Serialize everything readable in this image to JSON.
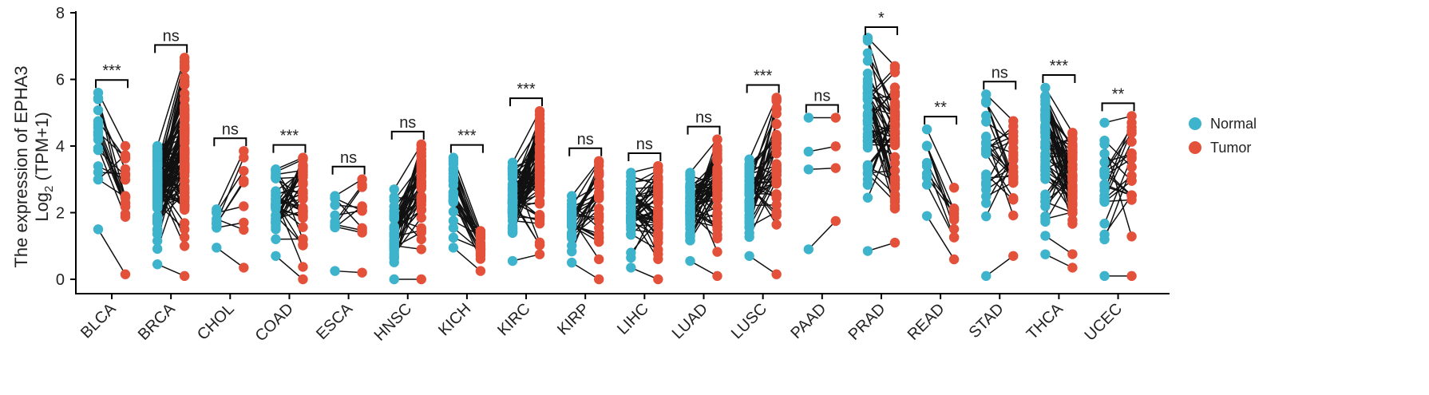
{
  "chart_data": {
    "type": "paired-scatter",
    "title": "",
    "ylabel_line1": "The expression of EPHA3",
    "ylabel_line2_main": "Log",
    "ylabel_line2_sub": "2",
    "ylabel_line2_rest": " (TPM+1)",
    "ylim": [
      0,
      8
    ],
    "yticks": [
      0,
      2,
      4,
      6,
      8
    ],
    "legend": {
      "position": "right",
      "entries": [
        {
          "name": "Normal",
          "color": "#3DB3CC"
        },
        {
          "name": "Tumor",
          "color": "#E4513B"
        }
      ]
    },
    "categories": [
      "BLCA",
      "BRCA",
      "CHOL",
      "COAD",
      "ESCA",
      "HNSC",
      "KICH",
      "KIRC",
      "KIRP",
      "LIHC",
      "LUAD",
      "LUSC",
      "PAAD",
      "PRAD",
      "READ",
      "STAD",
      "THCA",
      "UCEC"
    ],
    "significance": [
      "***",
      "ns",
      "ns",
      "***",
      "ns",
      "ns",
      "***",
      "***",
      "ns",
      "ns",
      "ns",
      "***",
      "ns",
      "*",
      "**",
      "ns",
      "***",
      "**"
    ],
    "groups": [
      {
        "cancer": "BLCA",
        "n_pairs": 19,
        "normal_range": [
          1.5,
          5.6
        ],
        "tumor_range": [
          0.15,
          4.0
        ]
      },
      {
        "cancer": "BRCA",
        "n_pairs": 110,
        "normal_range": [
          0.45,
          4.0
        ],
        "tumor_range": [
          0.1,
          6.65
        ]
      },
      {
        "cancer": "CHOL",
        "n_pairs": 9,
        "normal_range": [
          0.95,
          2.1
        ],
        "tumor_range": [
          0.35,
          3.85
        ]
      },
      {
        "cancer": "COAD",
        "n_pairs": 40,
        "normal_range": [
          0.7,
          3.3
        ],
        "tumor_range": [
          0.0,
          3.65
        ]
      },
      {
        "cancer": "ESCA",
        "n_pairs": 11,
        "normal_range": [
          0.25,
          2.5
        ],
        "tumor_range": [
          0.2,
          3.0
        ]
      },
      {
        "cancer": "HNSC",
        "n_pairs": 43,
        "normal_range": [
          0.0,
          2.7
        ],
        "tumor_range": [
          0.0,
          4.05
        ]
      },
      {
        "cancer": "KICH",
        "n_pairs": 25,
        "normal_range": [
          0.95,
          3.65
        ],
        "tumor_range": [
          0.25,
          1.45
        ]
      },
      {
        "cancer": "KIRC",
        "n_pairs": 72,
        "normal_range": [
          0.55,
          3.5
        ],
        "tumor_range": [
          0.75,
          5.05
        ]
      },
      {
        "cancer": "KIRP",
        "n_pairs": 32,
        "normal_range": [
          0.5,
          2.5
        ],
        "tumor_range": [
          0.0,
          3.55
        ]
      },
      {
        "cancer": "LIHC",
        "n_pairs": 50,
        "normal_range": [
          0.35,
          3.2
        ],
        "tumor_range": [
          0.0,
          3.4
        ]
      },
      {
        "cancer": "LUAD",
        "n_pairs": 58,
        "normal_range": [
          0.55,
          3.2
        ],
        "tumor_range": [
          0.1,
          4.2
        ]
      },
      {
        "cancer": "LUSC",
        "n_pairs": 49,
        "normal_range": [
          0.7,
          3.6
        ],
        "tumor_range": [
          0.15,
          5.45
        ]
      },
      {
        "cancer": "PAAD",
        "n_pairs": 4,
        "normal_range": [
          0.9,
          4.85
        ],
        "tumor_range": [
          1.75,
          4.85
        ]
      },
      {
        "cancer": "PRAD",
        "n_pairs": 52,
        "normal_range": [
          0.85,
          7.25
        ],
        "tumor_range": [
          1.1,
          6.4
        ]
      },
      {
        "cancer": "READ",
        "n_pairs": 10,
        "normal_range": [
          1.9,
          4.5
        ],
        "tumor_range": [
          0.6,
          2.75
        ]
      },
      {
        "cancer": "STAD",
        "n_pairs": 27,
        "normal_range": [
          0.1,
          5.55
        ],
        "tumor_range": [
          0.7,
          4.75
        ]
      },
      {
        "cancer": "THCA",
        "n_pairs": 58,
        "normal_range": [
          0.75,
          5.75
        ],
        "tumor_range": [
          0.35,
          4.4
        ]
      },
      {
        "cancer": "UCEC",
        "n_pairs": 23,
        "normal_range": [
          0.1,
          4.7
        ],
        "tumor_range": [
          0.1,
          4.9
        ]
      }
    ]
  }
}
